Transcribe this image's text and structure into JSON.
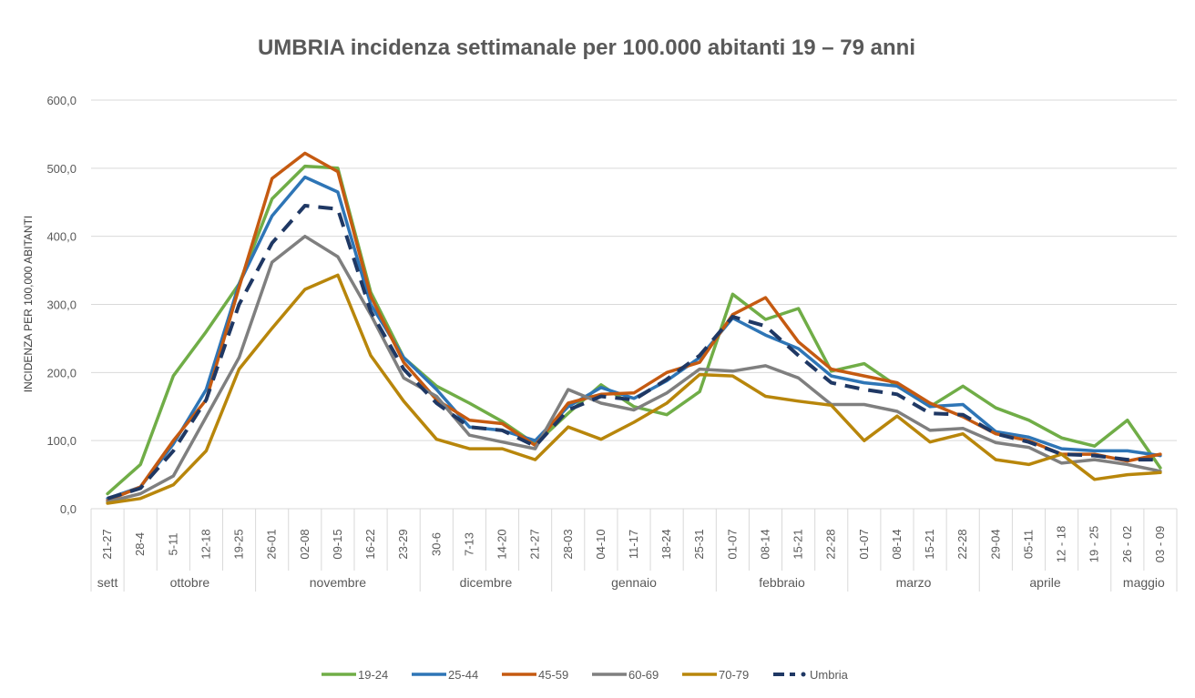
{
  "chart_data": {
    "type": "line",
    "title": "UMBRIA incidenza settimanale per 100.000 abitanti 19 – 79 anni",
    "ylabel": "INCIDENZA PER 100,000 ABITANTI",
    "xlabel": "",
    "ylim": [
      0,
      600
    ],
    "yticks": [
      0,
      100,
      200,
      300,
      400,
      500,
      600
    ],
    "ytick_labels": [
      "0,0",
      "100,0",
      "200,0",
      "300,0",
      "400,0",
      "500,0",
      "600,0"
    ],
    "grid": true,
    "legend_position": "bottom",
    "categories": [
      "21-27",
      "28-4",
      "5-11",
      "12-18",
      "19-25",
      "26-01",
      "02-08",
      "09-15",
      "16-22",
      "23-29",
      "30-6",
      "7-13",
      "14-20",
      "21-27",
      "28-03",
      "04-10",
      "11-17",
      "18-24",
      "25-31",
      "01-07",
      "08-14",
      "15-21",
      "22-28",
      "01-07",
      "08-14",
      "15-21",
      "22-28",
      "29-04",
      "05-11",
      "12 - 18",
      "19 - 25",
      "26 - 02",
      "03 - 09"
    ],
    "months": [
      {
        "label": "sett",
        "start": 0,
        "end": 0
      },
      {
        "label": "ottobre",
        "start": 1,
        "end": 4
      },
      {
        "label": "novembre",
        "start": 5,
        "end": 9
      },
      {
        "label": "dicembre",
        "start": 10,
        "end": 13
      },
      {
        "label": "gennaio",
        "start": 14,
        "end": 18
      },
      {
        "label": "febbraio",
        "start": 19,
        "end": 22
      },
      {
        "label": "marzo",
        "start": 23,
        "end": 26
      },
      {
        "label": "aprile",
        "start": 27,
        "end": 30
      },
      {
        "label": "maggio",
        "start": 31,
        "end": 32
      }
    ],
    "series": [
      {
        "name": "19-24",
        "color": "#70ad47",
        "dashed": false,
        "values": [
          22,
          65,
          195,
          260,
          330,
          455,
          503,
          500,
          318,
          222,
          180,
          155,
          128,
          95,
          140,
          182,
          150,
          138,
          172,
          315,
          278,
          294,
          202,
          213,
          180,
          150,
          180,
          148,
          130,
          104,
          92,
          130,
          60
        ]
      },
      {
        "name": "25-44",
        "color": "#2e75b6",
        "dashed": false,
        "values": [
          15,
          32,
          95,
          175,
          330,
          430,
          487,
          465,
          300,
          222,
          175,
          120,
          115,
          100,
          150,
          178,
          162,
          188,
          222,
          280,
          255,
          235,
          195,
          185,
          180,
          150,
          153,
          113,
          105,
          88,
          85,
          85,
          78
        ]
      },
      {
        "name": "45-59",
        "color": "#c55a11",
        "dashed": false,
        "values": [
          12,
          32,
          100,
          160,
          325,
          485,
          522,
          495,
          312,
          215,
          160,
          130,
          125,
          93,
          155,
          168,
          170,
          200,
          215,
          285,
          310,
          245,
          205,
          195,
          185,
          155,
          135,
          110,
          100,
          80,
          80,
          70,
          80
        ]
      },
      {
        "name": "60-69",
        "color": "#7f7f7f",
        "dashed": false,
        "values": [
          10,
          22,
          48,
          135,
          222,
          362,
          400,
          370,
          285,
          192,
          165,
          108,
          98,
          88,
          175,
          155,
          145,
          170,
          205,
          202,
          210,
          192,
          153,
          153,
          143,
          115,
          118,
          97,
          90,
          67,
          72,
          65,
          55
        ]
      },
      {
        "name": "70-79",
        "color": "#b8860b",
        "dashed": false,
        "values": [
          8,
          15,
          35,
          85,
          205,
          265,
          322,
          343,
          225,
          158,
          102,
          88,
          88,
          72,
          120,
          102,
          127,
          155,
          197,
          195,
          165,
          158,
          152,
          100,
          136,
          98,
          110,
          72,
          65,
          80,
          43,
          50,
          53
        ]
      },
      {
        "name": "Umbria",
        "color": "#1f3864",
        "dashed": true,
        "values": [
          15,
          30,
          85,
          160,
          300,
          390,
          445,
          440,
          290,
          205,
          155,
          120,
          115,
          92,
          145,
          165,
          160,
          190,
          225,
          282,
          268,
          225,
          185,
          175,
          168,
          140,
          138,
          110,
          98,
          80,
          78,
          72,
          72
        ]
      }
    ]
  }
}
